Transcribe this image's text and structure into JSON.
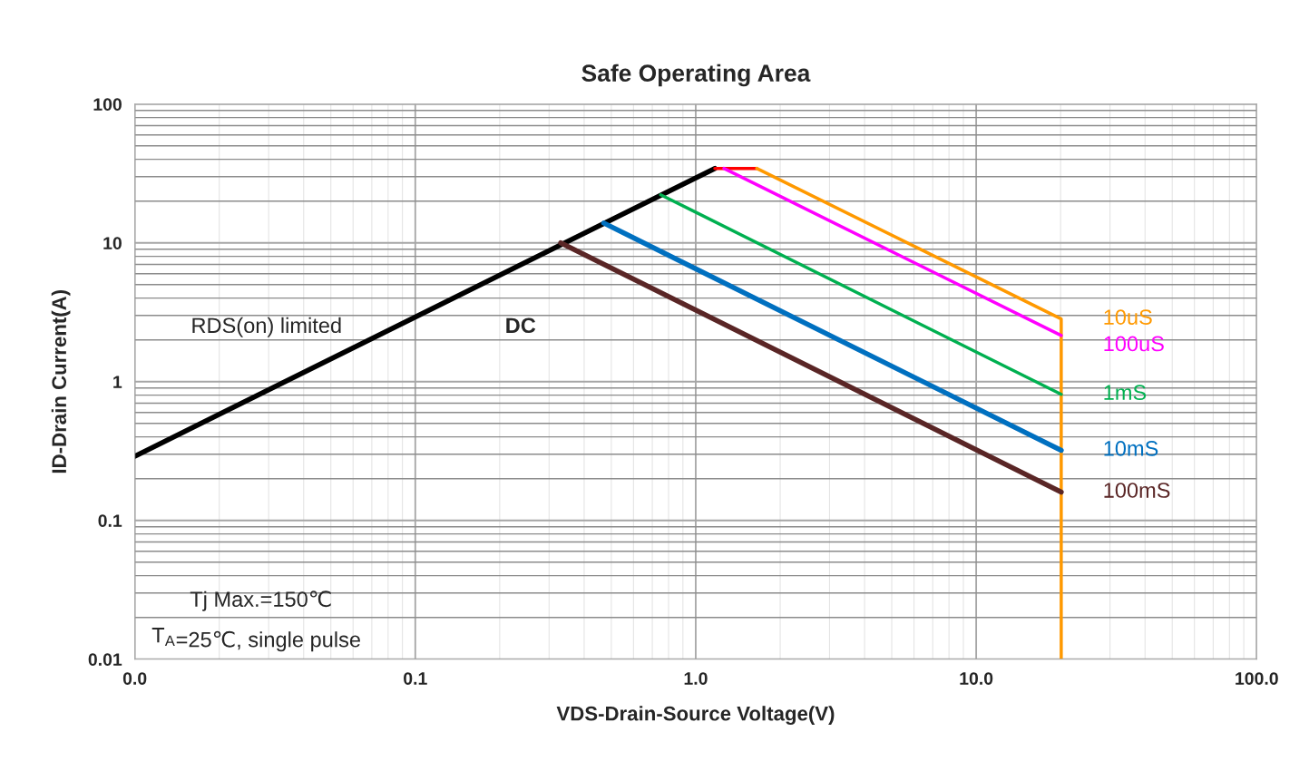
{
  "chart_data": {
    "type": "line",
    "title": "Safe Operating Area",
    "xlabel": "VDS-Drain-Source Voltage(V)",
    "ylabel": "ID-Drain Current(A)",
    "log": "xy",
    "grid": true,
    "legend": false,
    "marker": "none",
    "line_style": "solid",
    "xlim": [
      0.01,
      100
    ],
    "ylim": [
      0.01,
      100
    ],
    "xticks": [
      {
        "value": 0.01,
        "label": "0.0"
      },
      {
        "value": 0.1,
        "label": "0.1"
      },
      {
        "value": 1,
        "label": "1.0"
      },
      {
        "value": 10,
        "label": "10.0"
      },
      {
        "value": 100,
        "label": "100.0"
      }
    ],
    "yticks": [
      0.01,
      0.1,
      1,
      10,
      100
    ],
    "series": [
      {
        "color": "#000000",
        "x": [
          0.01,
          1.17
        ],
        "values": [
          0.29,
          34.4
        ]
      },
      {
        "color": "#ff0000",
        "x": [
          1.17,
          1.65
        ],
        "values": [
          34.4,
          34.4
        ]
      },
      {
        "name": "10uS",
        "color": "#ff9900",
        "x": [
          1.65,
          20.1,
          20.1
        ],
        "values": [
          34.4,
          2.83,
          0.01
        ]
      },
      {
        "name": "100uS",
        "color": "#ff00ff",
        "x": [
          1.26,
          20.1
        ],
        "values": [
          34.4,
          2.15
        ]
      },
      {
        "name": "1mS",
        "color": "#00b050",
        "x": [
          0.75,
          20.1
        ],
        "values": [
          22.2,
          0.81
        ]
      },
      {
        "name": "10mS",
        "color": "#0070c0",
        "x": [
          0.47,
          20.1
        ],
        "values": [
          13.9,
          0.32
        ]
      },
      {
        "name": "100mS",
        "color": "#5a2626",
        "x": [
          0.33,
          20.1
        ],
        "values": [
          10,
          0.16
        ]
      }
    ],
    "annotations": [
      "RDS(on) limited",
      "DC",
      "Tj Max.=150℃",
      "T$_{A}$=25℃, single pulse"
    ]
  }
}
